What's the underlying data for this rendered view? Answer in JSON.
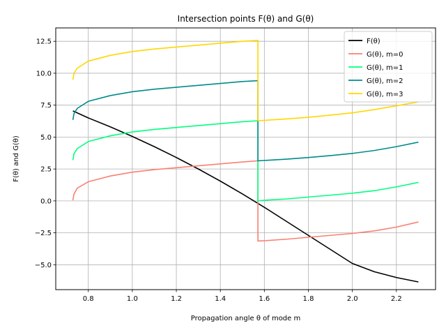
{
  "chart_data": {
    "type": "line",
    "title": "Intersection points F(θ) and G(θ)",
    "xlabel": "Propagation angle θ of mode m",
    "ylabel": "F(θ) and G(θ)",
    "xlim": [
      0.652,
      2.378
    ],
    "ylim": [
      -6.95,
      13.55
    ],
    "xticks": [
      0.8,
      1.0,
      1.2,
      1.4,
      1.6,
      1.8,
      2.0,
      2.2
    ],
    "xtick_labels": [
      "0.8",
      "1.0",
      "1.2",
      "1.4",
      "1.6",
      "1.8",
      "2.0",
      "2.2"
    ],
    "yticks": [
      -5.0,
      -2.5,
      0.0,
      2.5,
      5.0,
      7.5,
      10.0,
      12.5
    ],
    "ytick_labels": [
      "−5.0",
      "−2.5",
      "0.0",
      "2.5",
      "5.0",
      "7.5",
      "10.0",
      "12.5"
    ],
    "grid": true,
    "legend_position": "top-right",
    "series": [
      {
        "name": "F(θ)",
        "color": "#000000",
        "x": [
          0.73,
          0.8,
          0.9,
          1.0,
          1.1,
          1.2,
          1.3,
          1.4,
          1.5,
          1.6,
          1.7,
          1.8,
          1.9,
          2.0,
          2.1,
          2.2,
          2.3
        ],
        "y": [
          7.05,
          6.5,
          5.8,
          5.05,
          4.25,
          3.4,
          2.5,
          1.55,
          0.55,
          -0.5,
          -1.6,
          -2.7,
          -3.8,
          -4.9,
          -5.55,
          -6.0,
          -6.35
        ]
      },
      {
        "name": "G(θ), m=0",
        "color": "#FA8072",
        "x": [
          0.73,
          0.735,
          0.75,
          0.8,
          0.9,
          1.0,
          1.1,
          1.2,
          1.3,
          1.4,
          1.5,
          1.5708,
          1.5708,
          1.6,
          1.7,
          1.8,
          1.9,
          2.0,
          2.1,
          2.2,
          2.3
        ],
        "y": [
          0.05,
          0.55,
          1.0,
          1.5,
          1.95,
          2.25,
          2.45,
          2.6,
          2.75,
          2.9,
          3.05,
          3.14,
          -3.14,
          -3.12,
          -3.0,
          -2.85,
          -2.7,
          -2.55,
          -2.35,
          -2.05,
          -1.65
        ]
      },
      {
        "name": "G(θ), m=1",
        "color": "#00FF7F",
        "x": [
          0.73,
          0.735,
          0.75,
          0.8,
          0.9,
          1.0,
          1.1,
          1.2,
          1.3,
          1.4,
          1.5,
          1.5708,
          1.5708,
          1.6,
          1.7,
          1.8,
          1.9,
          2.0,
          2.1,
          2.2,
          2.3
        ],
        "y": [
          3.2,
          3.7,
          4.1,
          4.65,
          5.1,
          5.4,
          5.6,
          5.75,
          5.9,
          6.05,
          6.2,
          6.28,
          0.0,
          0.05,
          0.15,
          0.3,
          0.45,
          0.6,
          0.8,
          1.1,
          1.45
        ]
      },
      {
        "name": "G(θ), m=2",
        "color": "#008B8B",
        "x": [
          0.73,
          0.735,
          0.75,
          0.8,
          0.9,
          1.0,
          1.1,
          1.2,
          1.3,
          1.4,
          1.5,
          1.5708,
          1.5708,
          1.6,
          1.7,
          1.8,
          1.9,
          2.0,
          2.1,
          2.2,
          2.3
        ],
        "y": [
          6.35,
          6.85,
          7.25,
          7.8,
          8.25,
          8.55,
          8.75,
          8.9,
          9.05,
          9.2,
          9.35,
          9.42,
          3.14,
          3.17,
          3.27,
          3.4,
          3.55,
          3.72,
          3.95,
          4.25,
          4.6
        ]
      },
      {
        "name": "G(θ), m=3",
        "color": "#FFD700",
        "x": [
          0.73,
          0.735,
          0.75,
          0.8,
          0.9,
          1.0,
          1.1,
          1.2,
          1.3,
          1.4,
          1.5,
          1.5708,
          1.5708,
          1.6,
          1.7,
          1.8,
          1.9,
          2.0,
          2.1,
          2.2,
          2.3
        ],
        "y": [
          9.5,
          10.0,
          10.4,
          10.95,
          11.4,
          11.7,
          11.9,
          12.05,
          12.2,
          12.35,
          12.5,
          12.57,
          6.28,
          6.31,
          6.42,
          6.55,
          6.72,
          6.9,
          7.15,
          7.45,
          7.75
        ]
      }
    ]
  }
}
